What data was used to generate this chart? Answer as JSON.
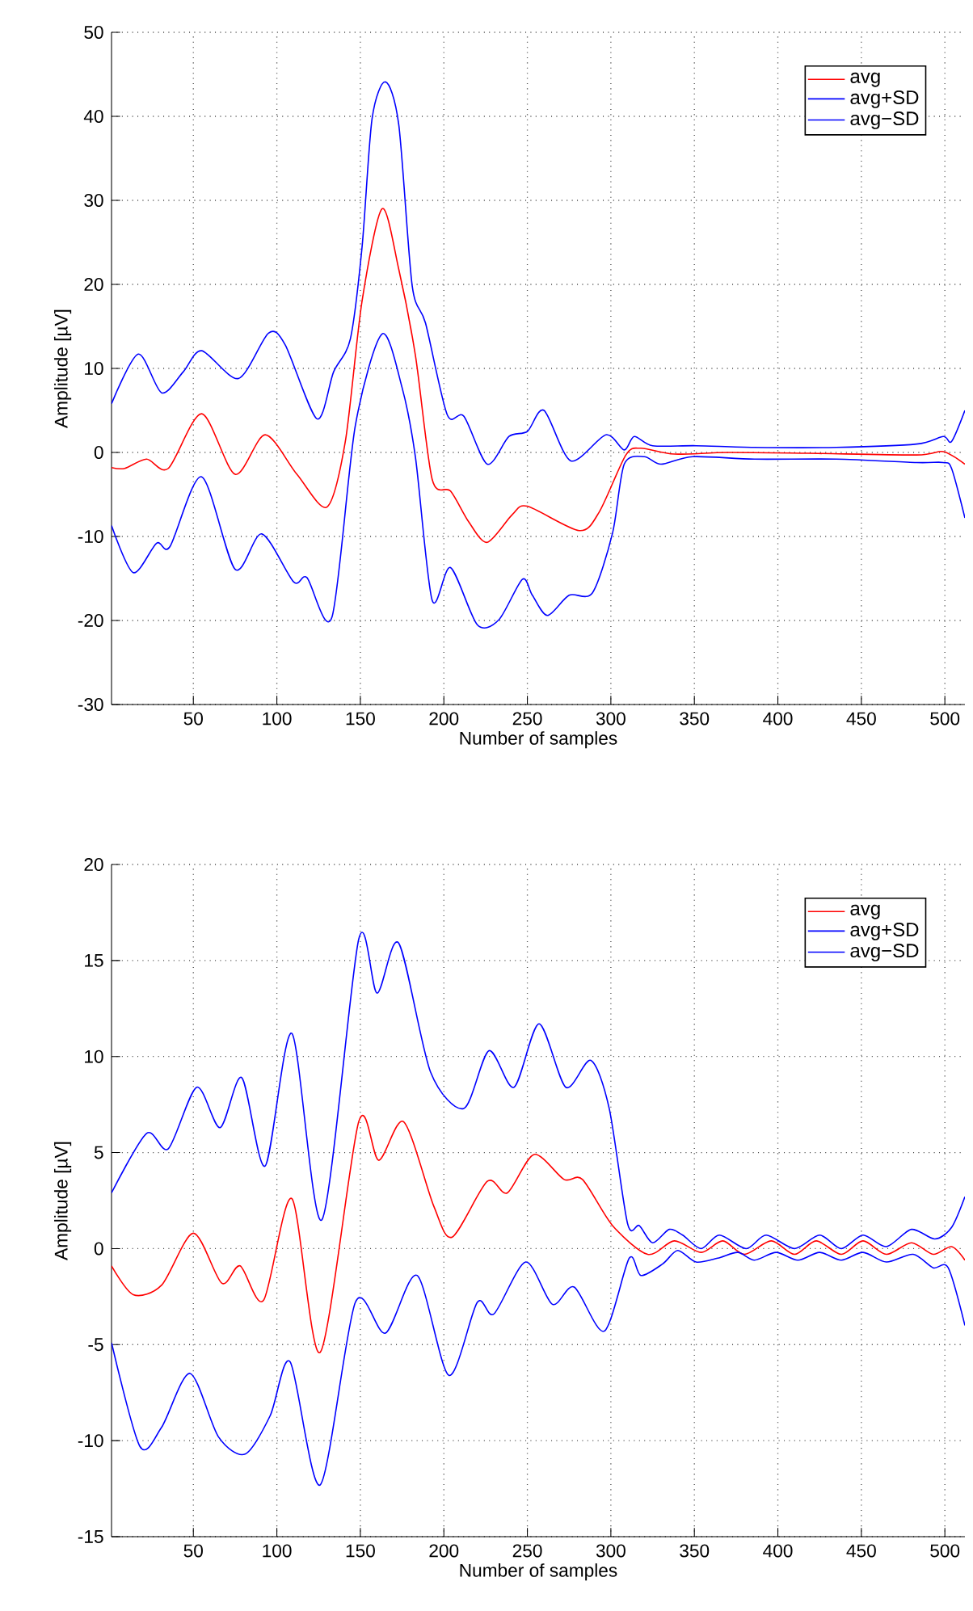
{
  "chart_data": [
    {
      "type": "line",
      "xlabel": "Number of samples",
      "ylabel": "Amplitude [µV]",
      "xlim": [
        1,
        512
      ],
      "ylim": [
        -30,
        50
      ],
      "xticks": [
        50,
        100,
        150,
        200,
        250,
        300,
        350,
        400,
        450,
        500
      ],
      "yticks": [
        -30,
        -20,
        -10,
        0,
        10,
        20,
        30,
        40,
        50
      ],
      "grid": true,
      "legend": "top right",
      "series": [
        {
          "name": "avg",
          "color": "#ff0000",
          "x": [
            1,
            9,
            22,
            35,
            55,
            75,
            93,
            112,
            130,
            141,
            151,
            163,
            173,
            183,
            193,
            204,
            215,
            226,
            241,
            250,
            281,
            293,
            309,
            318,
            338,
            370,
            418,
            483,
            499,
            512
          ],
          "values": [
            -1.8,
            -1.9,
            -0.8,
            -1.9,
            4.6,
            -2.6,
            2.1,
            -2.6,
            -6.5,
            1.3,
            18,
            29,
            21.8,
            11.5,
            -3.2,
            -4.6,
            -8.3,
            -10.7,
            -7.4,
            -6.4,
            -9.3,
            -7.1,
            -0.3,
            0.5,
            -0.2,
            0,
            -0.1,
            -0.3,
            0.1,
            -1.4
          ]
        },
        {
          "name": "avg+SD",
          "color": "#0000ff",
          "x": [
            1,
            17,
            31,
            44,
            55,
            77,
            95,
            105,
            124,
            134,
            144,
            151,
            157,
            165,
            173,
            181,
            189,
            202,
            212,
            226,
            239,
            250,
            260,
            276,
            297,
            308,
            314,
            325,
            351,
            386,
            435,
            483,
            499,
            504,
            512
          ],
          "values": [
            5.8,
            11.7,
            7.1,
            9.6,
            12.1,
            8.8,
            14.2,
            12.8,
            4.0,
            9.6,
            13.5,
            24.4,
            39.7,
            44.1,
            39,
            19.9,
            15.4,
            4.5,
            4.3,
            -1.4,
            1.9,
            2.5,
            5.0,
            -1.0,
            2.1,
            0.3,
            1.9,
            0.8,
            0.8,
            0.6,
            0.6,
            1.0,
            1.9,
            1.3,
            5.0
          ]
        },
        {
          "name": "avg−SD",
          "color": "#0000ff",
          "x": [
            1,
            14,
            28,
            36,
            55,
            75,
            91,
            110,
            118,
            133,
            147,
            163,
            175,
            183,
            193,
            204,
            220,
            233,
            247,
            253,
            262,
            275,
            289,
            301,
            308,
            320,
            330,
            349,
            386,
            435,
            483,
            499,
            504,
            512
          ],
          "values": [
            -8.7,
            -14.3,
            -10.8,
            -11.2,
            -2.9,
            -13.9,
            -9.7,
            -15.4,
            -14.9,
            -19.6,
            3.2,
            14.1,
            7.7,
            -0.6,
            -17.6,
            -13.7,
            -20.5,
            -19.9,
            -15.1,
            -17,
            -19.4,
            -17,
            -16.7,
            -9.6,
            -1.4,
            -0.5,
            -1.4,
            -0.5,
            -0.8,
            -0.8,
            -1.2,
            -1.2,
            -1.9,
            -7.8
          ]
        }
      ]
    },
    {
      "type": "line",
      "xlabel": "Number of samples",
      "ylabel": "Amplitude [µV]",
      "xlim": [
        1,
        512
      ],
      "ylim": [
        -15,
        20
      ],
      "xticks": [
        50,
        100,
        150,
        200,
        250,
        300,
        350,
        400,
        450,
        500
      ],
      "yticks": [
        -15,
        -10,
        -5,
        0,
        5,
        10,
        15,
        20
      ],
      "grid": true,
      "legend": "top right",
      "series": [
        {
          "name": "avg",
          "color": "#ff0000",
          "x": [
            1,
            14,
            31,
            50,
            67,
            78,
            92,
            109,
            126,
            149,
            161,
            176,
            194,
            205,
            226,
            238,
            254,
            272,
            283,
            301,
            322,
            338,
            354,
            367,
            380,
            396,
            410,
            423,
            438,
            451,
            465,
            480,
            493,
            504,
            512
          ],
          "values": [
            -0.9,
            -2.4,
            -1.9,
            0.8,
            -1.8,
            -0.9,
            -2.7,
            2.6,
            -5.4,
            6.6,
            4.6,
            6.6,
            2.2,
            0.6,
            3.5,
            2.9,
            4.9,
            3.6,
            3.6,
            1.2,
            -0.3,
            0.4,
            -0.2,
            0.4,
            -0.3,
            0.4,
            -0.3,
            0.4,
            -0.3,
            0.4,
            -0.3,
            0.3,
            -0.3,
            0.1,
            -0.6
          ]
        },
        {
          "name": "avg+SD",
          "color": "#0000ff",
          "x": [
            1,
            22,
            35,
            52,
            66,
            79,
            93,
            109,
            127,
            149,
            160,
            173,
            192,
            212,
            227,
            242,
            257,
            273,
            288,
            299,
            310,
            317,
            325,
            335,
            343,
            354,
            365,
            381,
            393,
            410,
            425,
            438,
            451,
            465,
            480,
            494,
            504,
            512
          ],
          "values": [
            2.9,
            6.0,
            5.2,
            8.4,
            6.3,
            8.9,
            4.3,
            11.2,
            1.5,
            16.1,
            13.3,
            15.9,
            9.2,
            7.3,
            10.3,
            8.4,
            11.7,
            8.4,
            9.8,
            7.3,
            1.3,
            1.2,
            0.3,
            1.0,
            0.7,
            0.0,
            0.7,
            0,
            0.7,
            0,
            0.7,
            0,
            0.7,
            0.1,
            1.0,
            0.5,
            1.1,
            2.7
          ]
        },
        {
          "name": "avg−SD",
          "color": "#0000ff",
          "x": [
            1,
            18,
            31,
            48,
            65,
            81,
            96,
            108,
            126,
            147,
            165,
            184,
            203,
            220,
            230,
            249,
            265,
            278,
            296,
            311,
            318,
            331,
            340,
            351,
            364,
            376,
            386,
            399,
            412,
            425,
            438,
            451,
            465,
            481,
            493,
            502,
            512
          ],
          "values": [
            -4.9,
            -10.3,
            -9.3,
            -6.5,
            -9.8,
            -10.7,
            -8.7,
            -5.9,
            -12.3,
            -2.8,
            -4.4,
            -1.4,
            -6.6,
            -2.8,
            -3.4,
            -0.7,
            -2.9,
            -2.0,
            -4.3,
            -0.5,
            -1.4,
            -0.8,
            -0.1,
            -0.7,
            -0.5,
            -0.2,
            -0.6,
            -0.2,
            -0.6,
            -0.2,
            -0.6,
            -0.2,
            -0.7,
            -0.3,
            -1.0,
            -1.0,
            -4.0
          ]
        }
      ]
    }
  ]
}
